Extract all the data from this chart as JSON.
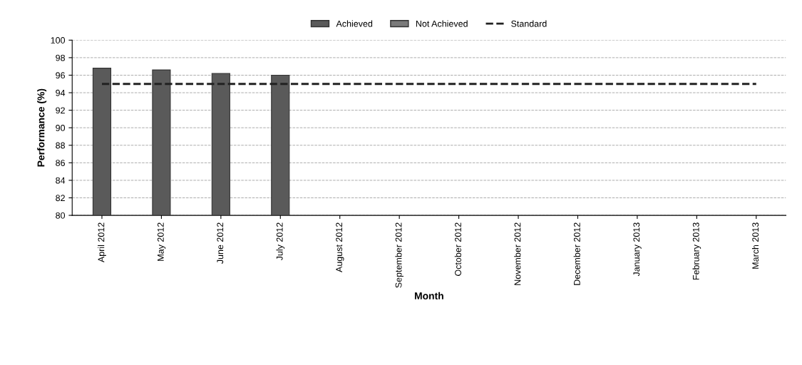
{
  "chart_data": {
    "type": "bar",
    "xlabel": "Month",
    "ylabel": "Performance (%)",
    "categories": [
      "April 2012",
      "May 2012",
      "June 2012",
      "July 2012",
      "August 2012",
      "September 2012",
      "October 2012",
      "November 2012",
      "December 2012",
      "January 2013",
      "February 2013",
      "March 2013"
    ],
    "series": [
      {
        "name": "Achieved",
        "color": "#5a5a5a",
        "values": [
          96.8,
          96.6,
          96.2,
          96.0,
          null,
          null,
          null,
          null,
          null,
          null,
          null,
          null
        ]
      },
      {
        "name": "Not Achieved",
        "color": "#7a7a7a",
        "values": [
          null,
          null,
          null,
          null,
          null,
          null,
          null,
          null,
          null,
          null,
          null,
          null
        ]
      },
      {
        "name": "Standard",
        "type": "line",
        "line_style": "dashed",
        "color": "#222222",
        "values": [
          95,
          95,
          95,
          95,
          95,
          95,
          95,
          95,
          95,
          95,
          95,
          95
        ]
      }
    ],
    "ylim": [
      80,
      100
    ],
    "yticks": [
      80,
      82,
      84,
      86,
      88,
      90,
      92,
      94,
      96,
      98,
      100
    ],
    "grid": "y",
    "legend": "top"
  }
}
